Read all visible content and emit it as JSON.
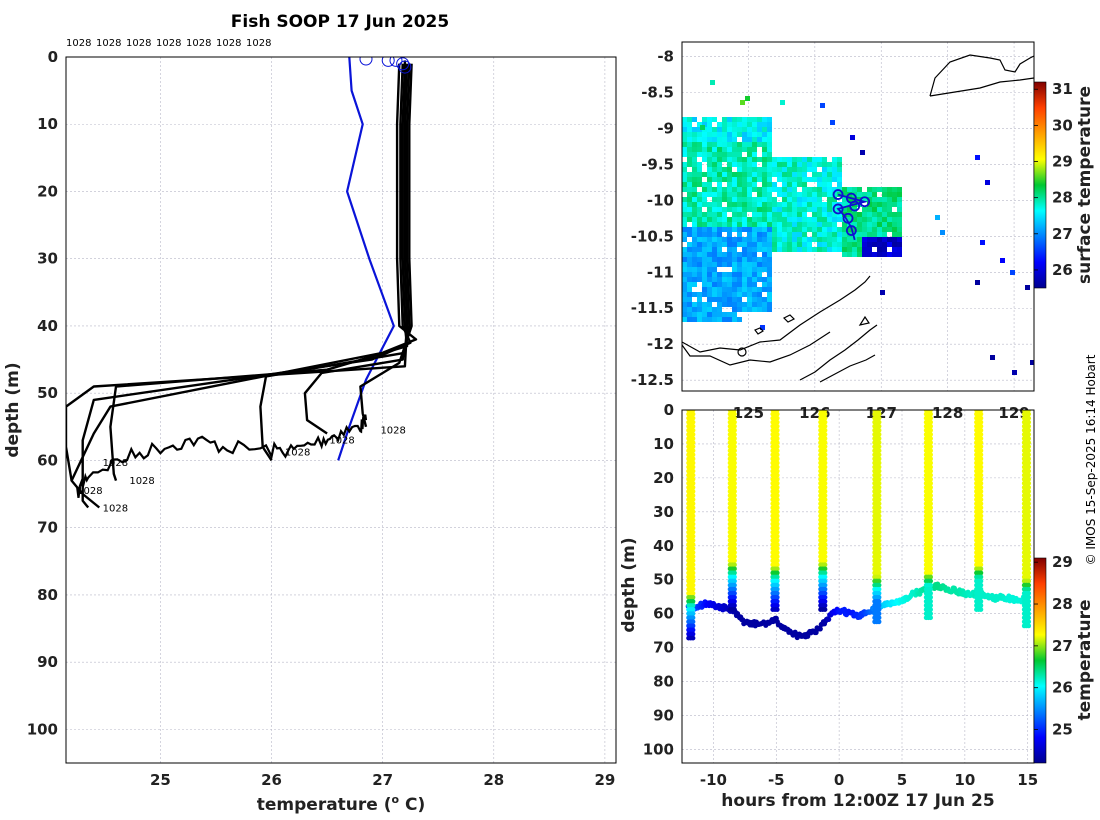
{
  "title": "Fish SOOP 17 Jun 2025",
  "credit": "© IMOS 15-Sep-2025 16:14 Hobart",
  "colors": {
    "profile": "#000000",
    "climatology": "#0a14d8",
    "coast": "#000000",
    "track": "#1010d0"
  },
  "chart_data": [
    {
      "id": "profiles",
      "type": "line",
      "xlabel_prefix": "temperature (",
      "xlabel_sup": "o",
      "xlabel_suffix": " C)",
      "ylabel": "depth (m)",
      "xlim": [
        24.15,
        29.1
      ],
      "ylim": [
        105,
        0
      ],
      "xticks": [
        25,
        26,
        27,
        28,
        29
      ],
      "yticks": [
        0,
        10,
        20,
        30,
        40,
        50,
        60,
        70,
        80,
        90,
        100
      ],
      "top_labels": [
        "1028",
        "1028",
        "1028",
        "1028",
        "1028",
        "1028",
        "1028"
      ],
      "series": [
        {
          "name": "clim",
          "style": "climatology",
          "points": [
            [
              26.7,
              0
            ],
            [
              26.72,
              5
            ],
            [
              26.82,
              10
            ],
            [
              26.68,
              20
            ],
            [
              26.88,
              30
            ],
            [
              27.1,
              40
            ],
            [
              26.85,
              48
            ],
            [
              26.7,
              55
            ],
            [
              26.6,
              60
            ]
          ]
        },
        {
          "name": "p1",
          "style": "profile",
          "points": [
            [
              27.15,
              1
            ],
            [
              27.13,
              10
            ],
            [
              27.13,
              30
            ],
            [
              27.15,
              40
            ],
            [
              27.3,
              42
            ],
            [
              27.0,
              44
            ],
            [
              24.55,
              52
            ],
            [
              24.4,
              56
            ],
            [
              24.2,
              63
            ],
            [
              24.3,
              65
            ],
            [
              24.45,
              67
            ]
          ]
        },
        {
          "name": "p2",
          "style": "profile",
          "points": [
            [
              27.18,
              1
            ],
            [
              27.16,
              10
            ],
            [
              27.16,
              30
            ],
            [
              27.18,
              40
            ],
            [
              27.25,
              42.5
            ],
            [
              26.9,
              45
            ],
            [
              24.4,
              51
            ],
            [
              24.3,
              57
            ],
            [
              24.3,
              66
            ],
            [
              24.35,
              67
            ]
          ]
        },
        {
          "name": "p3",
          "style": "profile",
          "points": [
            [
              27.2,
              1
            ],
            [
              27.18,
              10
            ],
            [
              27.18,
              30
            ],
            [
              27.2,
              40
            ],
            [
              27.22,
              43
            ],
            [
              26.5,
              46.5
            ],
            [
              24.6,
              49
            ],
            [
              24.55,
              55
            ],
            [
              24.58,
              62
            ],
            [
              24.6,
              63
            ]
          ]
        },
        {
          "name": "p4",
          "style": "profile",
          "points": [
            [
              27.22,
              1
            ],
            [
              27.2,
              10
            ],
            [
              27.2,
              30
            ],
            [
              27.22,
              40
            ],
            [
              27.2,
              44
            ],
            [
              25.95,
              47.5
            ],
            [
              25.9,
              52
            ],
            [
              25.92,
              58
            ],
            [
              26.0,
              60
            ]
          ]
        },
        {
          "name": "p5",
          "style": "profile",
          "points": [
            [
              27.24,
              1
            ],
            [
              27.22,
              10
            ],
            [
              27.22,
              30
            ],
            [
              27.24,
              40
            ],
            [
              27.18,
              45
            ],
            [
              26.45,
              47
            ],
            [
              26.3,
              50
            ],
            [
              26.32,
              54
            ],
            [
              26.5,
              56
            ]
          ]
        },
        {
          "name": "p6",
          "style": "profile",
          "points": [
            [
              27.26,
              1
            ],
            [
              27.24,
              10
            ],
            [
              27.24,
              30
            ],
            [
              27.26,
              40
            ],
            [
              27.15,
              45.5
            ],
            [
              26.8,
              49
            ],
            [
              26.82,
              53
            ],
            [
              26.85,
              55
            ]
          ]
        },
        {
          "name": "p7",
          "style": "profile",
          "points": [
            [
              27.2,
              0.5
            ],
            [
              27.2,
              10
            ],
            [
              27.2,
              30
            ],
            [
              27.22,
              40
            ],
            [
              27.2,
              46
            ],
            [
              24.4,
              49
            ],
            [
              24.15,
              52
            ],
            [
              24.15,
              58
            ],
            [
              24.2,
              63
            ]
          ]
        }
      ],
      "noisy_series": [
        {
          "name": "n1",
          "points": [
            [
              24.25,
              65
            ],
            [
              24.35,
              62
            ],
            [
              24.7,
              59.5
            ],
            [
              25.0,
              58
            ],
            [
              25.3,
              57
            ],
            [
              25.6,
              58
            ],
            [
              26.0,
              58.5
            ],
            [
              26.2,
              58.5
            ],
            [
              26.45,
              57
            ],
            [
              26.6,
              56
            ],
            [
              26.8,
              55
            ],
            [
              26.85,
              54
            ]
          ]
        }
      ],
      "surface_markers": [
        [
          26.85,
          0.3
        ],
        [
          27.05,
          0.5
        ],
        [
          27.12,
          0.5
        ],
        [
          27.18,
          1
        ],
        [
          27.2,
          1.5
        ]
      ],
      "bottom_labels": [
        {
          "text": "1028",
          "x": 24.48,
          "y": 60.8
        },
        {
          "text": "1028",
          "x": 24.72,
          "y": 63.5
        },
        {
          "text": "1028",
          "x": 24.25,
          "y": 65.0
        },
        {
          "text": "1028",
          "x": 24.48,
          "y": 67.6
        },
        {
          "text": "1028",
          "x": 26.12,
          "y": 59.3
        },
        {
          "text": "1028",
          "x": 26.52,
          "y": 57.5
        },
        {
          "text": "1028",
          "x": 26.98,
          "y": 56.0
        }
      ]
    },
    {
      "id": "map",
      "type": "heatmap",
      "colorbar_label": "surface temperature",
      "xlim": [
        124.0,
        129.3
      ],
      "ylim": [
        -12.65,
        -7.8
      ],
      "xticks": [
        125,
        126,
        127,
        128,
        129
      ],
      "yticks": [
        -8,
        -8.5,
        -9,
        -9.5,
        -10,
        -10.5,
        -11,
        -11.5,
        -12,
        -12.5
      ],
      "ytick_labels": [
        "-8",
        "-8.5",
        "-9",
        "-9.5",
        "-10",
        "-10.5",
        "-11",
        "-11.5",
        "-12",
        "-12.5"
      ],
      "colorbar_range": [
        25.5,
        31.2
      ],
      "colorbar_ticks": [
        26,
        27,
        28,
        29,
        30,
        31
      ],
      "track": [
        [
          126.35,
          -9.92
        ],
        [
          126.55,
          -9.97
        ],
        [
          126.75,
          -10.02
        ],
        [
          126.55,
          -10.07
        ],
        [
          126.35,
          -10.12
        ],
        [
          126.45,
          -10.22
        ],
        [
          126.55,
          -10.38
        ],
        [
          126.6,
          -10.55
        ]
      ],
      "track_markers": [
        [
          126.35,
          -9.92
        ],
        [
          126.55,
          -9.97
        ],
        [
          126.75,
          -10.02
        ],
        [
          126.6,
          -10.08
        ],
        [
          126.35,
          -10.12
        ],
        [
          126.5,
          -10.25
        ],
        [
          126.55,
          -10.42
        ]
      ]
    },
    {
      "id": "section",
      "type": "scatter",
      "xlabel": "hours from 12:00Z 17 Jun 25",
      "ylabel": "depth (m)",
      "colorbar_label": "temperature",
      "xlim": [
        -12.5,
        15.5
      ],
      "ylim": [
        104,
        0
      ],
      "xticks": [
        -10,
        -5,
        0,
        5,
        10,
        15
      ],
      "yticks": [
        0,
        10,
        20,
        30,
        40,
        50,
        60,
        70,
        80,
        90,
        100
      ],
      "colorbar_range": [
        24.2,
        29.1
      ],
      "colorbar_ticks": [
        25,
        26,
        27,
        28,
        29
      ],
      "casts": [
        {
          "t": -11.8,
          "bottom": 58,
          "surf_temp": 27.3
        },
        {
          "t": -8.5,
          "bottom": 49,
          "surf_temp": 27.25
        },
        {
          "t": -5.1,
          "bottom": 50,
          "surf_temp": 27.28
        },
        {
          "t": -1.3,
          "bottom": 49,
          "surf_temp": 27.25
        },
        {
          "t": 3.0,
          "bottom": 53,
          "surf_temp": 27.2
        },
        {
          "t": 7.1,
          "bottom": 52,
          "surf_temp": 27.25
        },
        {
          "t": 11.1,
          "bottom": 50,
          "surf_temp": 27.28
        },
        {
          "t": 14.9,
          "bottom": 54,
          "surf_temp": 27.2
        }
      ],
      "bottom_trace": [
        [
          -12.0,
          58,
          25.0
        ],
        [
          -11.5,
          58,
          25.2
        ],
        [
          -11,
          57.5,
          25.0
        ],
        [
          -10.5,
          57,
          24.8
        ],
        [
          -10,
          57.5,
          24.7
        ],
        [
          -9.5,
          58,
          24.6
        ],
        [
          -9,
          58.5,
          24.5
        ],
        [
          -8.5,
          59,
          24.4
        ],
        [
          -8,
          61,
          24.3
        ],
        [
          -7.5,
          62.5,
          24.3
        ],
        [
          -7,
          63,
          24.3
        ],
        [
          -6.5,
          63,
          24.3
        ],
        [
          -6,
          63,
          24.3
        ],
        [
          -5.5,
          62.5,
          24.3
        ],
        [
          -5,
          62,
          24.3
        ],
        [
          -4.5,
          64,
          24.3
        ],
        [
          -4,
          65,
          24.3
        ],
        [
          -3.5,
          66,
          24.3
        ],
        [
          -3,
          67,
          24.3
        ],
        [
          -2.5,
          66,
          24.3
        ],
        [
          -2,
          65.5,
          24.3
        ],
        [
          -1.5,
          64,
          24.3
        ],
        [
          -1,
          62,
          24.35
        ],
        [
          -0.5,
          60,
          24.7
        ],
        [
          0,
          59,
          24.9
        ],
        [
          0.5,
          59.5,
          24.95
        ],
        [
          1,
          60,
          24.9
        ],
        [
          1.5,
          61,
          25.0
        ],
        [
          2,
          60,
          25.1
        ],
        [
          2.5,
          59,
          25.3
        ],
        [
          3,
          58,
          25.6
        ],
        [
          3.5,
          57.5,
          25.8
        ],
        [
          4,
          57,
          25.9
        ],
        [
          4.5,
          57,
          26.0
        ],
        [
          5,
          56,
          26.1
        ],
        [
          5.5,
          55,
          26.15
        ],
        [
          6,
          54,
          26.2
        ],
        [
          6.5,
          53.5,
          26.3
        ],
        [
          7,
          52.5,
          26.35
        ],
        [
          7.5,
          52,
          26.4
        ],
        [
          8,
          52,
          26.4
        ],
        [
          8.5,
          52.5,
          26.35
        ],
        [
          9,
          53,
          26.3
        ],
        [
          9.5,
          53.5,
          26.3
        ],
        [
          10,
          54,
          26.25
        ],
        [
          10.5,
          54.5,
          26.2
        ],
        [
          11,
          54,
          26.25
        ],
        [
          11.5,
          54.5,
          26.2
        ],
        [
          12,
          55,
          26.2
        ],
        [
          12.5,
          55.5,
          26.2
        ],
        [
          13,
          55,
          26.2
        ],
        [
          13.5,
          55.5,
          26.15
        ],
        [
          14,
          56,
          26.15
        ],
        [
          14.5,
          56,
          26.15
        ],
        [
          15,
          55,
          26.2
        ]
      ]
    }
  ]
}
